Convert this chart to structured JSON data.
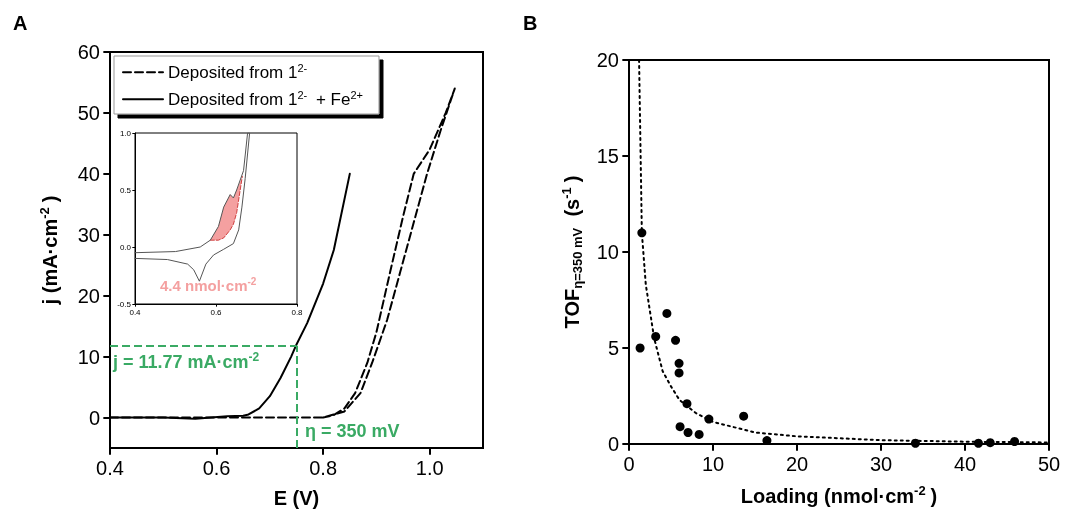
{
  "chart_data": [
    {
      "type": "line",
      "title": "A",
      "xlabel": "E (V)",
      "ylabel": "j (mA·cm$^{-2}$)",
      "xlim": [
        0.4,
        1.1
      ],
      "xticks": [
        0.4,
        0.6,
        0.8,
        {
          "value": 1,
          "label": "1.0"
        }
      ],
      "ylim": [
        -5,
        60
      ],
      "yticks": [
        0,
        10,
        20,
        30,
        40,
        50,
        60
      ],
      "grid": false,
      "legend": "top left",
      "marker": "none",
      "series": [
        {
          "name": "Deposited from 1$^{2-}$",
          "line_style": "dashed",
          "color": "#000000",
          "x": [
            0.4,
            0.6,
            0.8,
            0.84,
            0.87,
            0.892,
            0.92,
            0.945,
            0.97,
            0.995,
            1.02,
            1.047,
            1.03,
            1.0,
            0.97,
            0.95,
            0.926,
            0.9,
            0.883,
            0.86,
            0.84,
            0.82,
            0.8
          ],
          "values": [
            0,
            0,
            0,
            1,
            4,
            9,
            16,
            24,
            32,
            40,
            47,
            54,
            50,
            44,
            40,
            33,
            24,
            14,
            9,
            4,
            1.5,
            0.4,
            0
          ]
        },
        {
          "name": "Deposited from 1$^{2-}$ + Fe$^{2+}$",
          "line_style": "solid",
          "color": "#000000",
          "x": [
            0.4,
            0.5,
            0.56,
            0.62,
            0.65,
            0.66,
            0.68,
            0.7,
            0.72,
            0.74,
            0.75,
            0.77,
            0.8,
            0.82,
            0.85
          ],
          "values": [
            0,
            0,
            -0.2,
            0.2,
            0.3,
            0.5,
            1.5,
            3.5,
            6.5,
            10,
            12,
            15.5,
            22,
            27.5,
            40
          ]
        }
      ],
      "ref_lines": [
        {
          "axis": "y",
          "value": 11.77,
          "label": "j = 11.77 mA·cm$^{-2}$",
          "color": "#3aaa64",
          "line_style": "dashed"
        },
        {
          "axis": "x",
          "value": 0.75,
          "color": "#3aaa64",
          "line_style": "dashed"
        }
      ],
      "annotations": [
        "η = 350 mV"
      ]
    },
    {
      "type": "line",
      "xlim": [
        0.4,
        0.8
      ],
      "xticks": [
        0.4,
        0.6,
        0.8
      ],
      "ylim": [
        -0.5,
        1
      ],
      "yticks": [
        -0.5,
        {
          "value": 0,
          "label": "0.0"
        },
        0.5,
        {
          "value": 1,
          "label": "1.0"
        }
      ],
      "grid": false,
      "marker": "none",
      "annotations": [
        "4.4 nmol·cm$^{-2}$"
      ],
      "series": [
        {
          "line_style": "dashed",
          "color": "#d04040",
          "x": [
            0.586,
            0.606,
            0.619,
            0.635,
            0.643,
            0.651,
            0.665
          ],
          "values": [
            0.06,
            0.06,
            0.08,
            0.15,
            0.2,
            0.3,
            0.62
          ],
          "lower": [
            0.06,
            0.06,
            0.08,
            0.15,
            0.2,
            0.3,
            0.62
          ],
          "upper": [
            0.06,
            0.18,
            0.35,
            0.46,
            0.43,
            0.5,
            0.62
          ]
        },
        {
          "line_style": "solid",
          "color": "#555555",
          "x": [
            0.4,
            0.5,
            0.561,
            0.586,
            0.606,
            0.619,
            0.635,
            0.643,
            0.651,
            0.668,
            0.678,
            0.683,
            0.672,
            0.664,
            0.656,
            0.643,
            0.619,
            0.594,
            0.575,
            0.559,
            0.545,
            0.53,
            0.48,
            0.4
          ],
          "values": [
            -0.05,
            -0.04,
            0,
            0.06,
            0.18,
            0.35,
            0.46,
            0.43,
            0.5,
            0.67,
            1,
            1,
            0.6,
            0.35,
            0.15,
            0.03,
            -0.02,
            -0.07,
            -0.15,
            -0.3,
            -0.2,
            -0.15,
            -0.11,
            -0.1
          ]
        }
      ]
    },
    {
      "type": "scatter",
      "title": "B",
      "xlabel": "Loading (nmol·cm$^{-2}$)",
      "ylabel": "TOF$_{η=350 mV}$  (s$^{-1}$)",
      "xlim": [
        0,
        50
      ],
      "xticks": [
        0,
        10,
        20,
        30,
        40,
        50
      ],
      "ylim": [
        0,
        20
      ],
      "yticks": [
        0,
        5,
        10,
        15,
        20
      ],
      "grid": false,
      "marker": "circle",
      "series": [
        {
          "color": "#000000",
          "x": [
            1.32,
            1.53,
            3.18,
            4.51,
            5.54,
            5.96,
            5.96,
            6.08,
            6.9,
            7.03,
            8.35,
            9.51,
            13.65,
            16.42,
            34.1,
            41.6,
            43.0,
            45.9
          ],
          "values": [
            5.0,
            11.0,
            5.6,
            6.8,
            5.4,
            4.2,
            3.7,
            0.9,
            2.1,
            0.6,
            0.5,
            1.3,
            1.45,
            0.18,
            0.04,
            0.04,
            0.07,
            0.13
          ]
        },
        {
          "type": "line",
          "line_style": "dotted",
          "marker": "none",
          "color": "#000000",
          "x": [
            1.2,
            1.53,
            2,
            3,
            4,
            5,
            6,
            8,
            10,
            15,
            20,
            30,
            40,
            50
          ],
          "values": [
            20,
            11,
            8.3,
            5.5,
            3.8,
            3.0,
            2.3,
            1.6,
            1.15,
            0.6,
            0.4,
            0.2,
            0.12,
            0.08
          ]
        }
      ]
    }
  ]
}
